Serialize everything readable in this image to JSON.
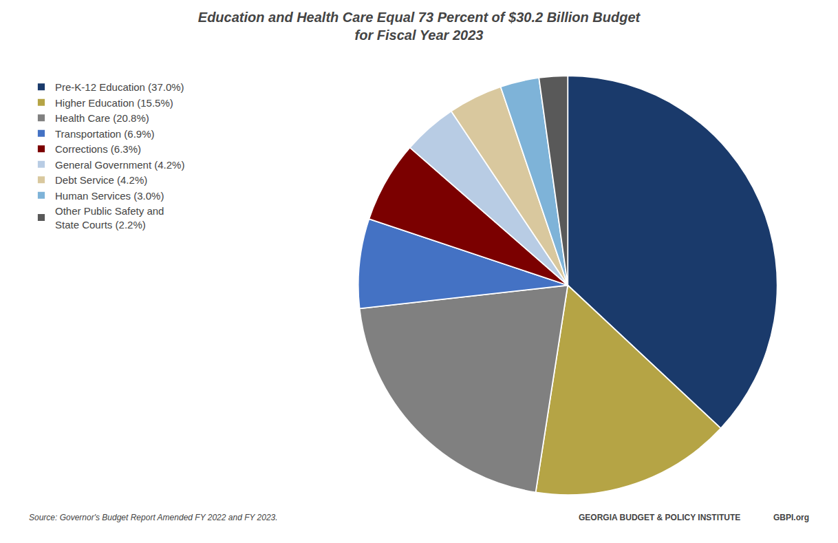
{
  "chart_data": {
    "type": "pie",
    "title": "Education and Health Care Equal 73 Percent of $30.2 Billion Budget\nfor Fiscal Year 2023",
    "categories": [
      "Pre-K-12 Education (37.0%)",
      "Higher Education (15.5%)",
      "Health Care (20.8%)",
      "Transportation (6.9%)",
      "Corrections (6.3%)",
      "General Government (4.2%)",
      "Debt Service (4.2%)",
      "Human Services (3.0%)",
      "Other Public Safety and\nState Courts (2.2%)"
    ],
    "values": [
      37.0,
      15.5,
      20.8,
      6.9,
      6.3,
      4.2,
      4.2,
      3.0,
      2.2
    ],
    "colors": [
      "#1a3a6b",
      "#b5a445",
      "#808080",
      "#4472c4",
      "#7b0000",
      "#b8cce4",
      "#d9c89e",
      "#7eb3d8",
      "#595959"
    ],
    "legend": "upper left",
    "annotations": [
      "Source: Governor's Budget Report Amended FY 2022 and FY 2023.",
      "GEORGIA BUDGET & POLICY INSTITUTE",
      "GBPI.org"
    ]
  }
}
